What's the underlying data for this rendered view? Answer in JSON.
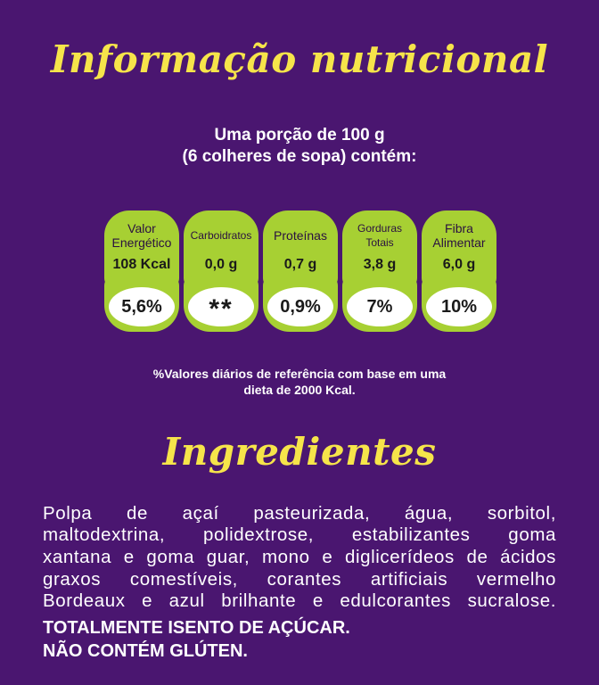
{
  "title": "Informação nutricional",
  "portion": {
    "line1": "Uma porção de 100 g",
    "line2": "(6 colheres de sopa) contém:"
  },
  "nutrients": [
    {
      "label": "Valor Energético",
      "amount": "108 Kcal",
      "dv": "5,6%"
    },
    {
      "label": "Carboidratos",
      "amount": "0,0 g",
      "dv": "**"
    },
    {
      "label": "Proteínas",
      "amount": "0,7 g",
      "dv": "0,9%"
    },
    {
      "label": "Gorduras Totais",
      "amount": "3,8 g",
      "dv": "7%"
    },
    {
      "label": "Fibra Alimentar",
      "amount": "6,0 g",
      "dv": "10%"
    }
  ],
  "reference": {
    "line1": "%Valores diários de referência com base em uma",
    "line2": "dieta de 2000 Kcal."
  },
  "ingredients_title": "Ingredientes",
  "ingredients_lines": [
    "Polpa de açaí pasteurizada, água, sorbitol,",
    "maltodextrina, polidextrose, estabilizantes goma",
    "xantana e goma guar, mono e diglicerídeos de ácidos",
    "graxos comestíveis, corantes artificiais vermelho",
    "Bordeaux e azul brilhante e edulcorantes sucralose."
  ],
  "notices": [
    "TOTALMENTE ISENTO DE AÇÚCAR.",
    "NÃO CONTÉM GLÚTEN."
  ],
  "colors": {
    "background": "#4a1670",
    "title": "#f6e44a",
    "panel": "#a7d033"
  }
}
